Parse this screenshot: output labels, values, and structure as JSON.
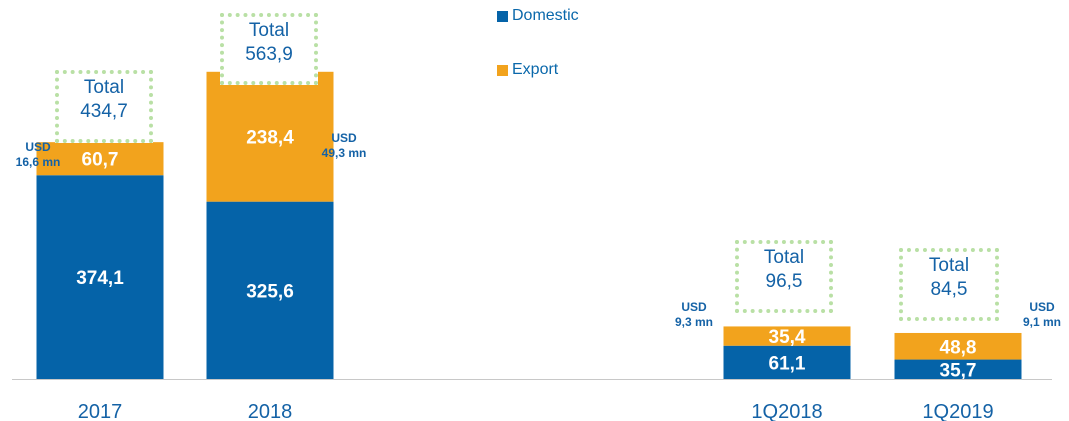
{
  "chart_data": {
    "type": "bar",
    "stacked": true,
    "categories": [
      "2017",
      "2018",
      "1Q2018",
      "1Q2019"
    ],
    "series": [
      {
        "name": "Domestic",
        "color": "#0563a8",
        "values": [
          374.1,
          325.6,
          61.1,
          35.7
        ],
        "labels": [
          "374,1",
          "325,6",
          "61,1",
          "35,7"
        ]
      },
      {
        "name": "Export",
        "color": "#f2a31d",
        "values": [
          60.7,
          238.4,
          35.4,
          48.8
        ],
        "labels": [
          "60,7",
          "238,4",
          "35,4",
          "48,8"
        ]
      }
    ],
    "totals": [
      {
        "label": "Total",
        "value": "434,7"
      },
      {
        "label": "Total",
        "value": "563,9"
      },
      {
        "label": "Total",
        "value": "96,5"
      },
      {
        "label": "Total",
        "value": "84,5"
      }
    ],
    "annotations": [
      {
        "line1": "USD",
        "line2": "16,6 mn"
      },
      {
        "line1": "USD",
        "line2": "49,3 mn"
      },
      {
        "line1": "USD",
        "line2": "9,3 mn"
      },
      {
        "line1": "USD",
        "line2": "9,1 mn"
      }
    ],
    "legend_position": "top-center",
    "grid": false
  }
}
